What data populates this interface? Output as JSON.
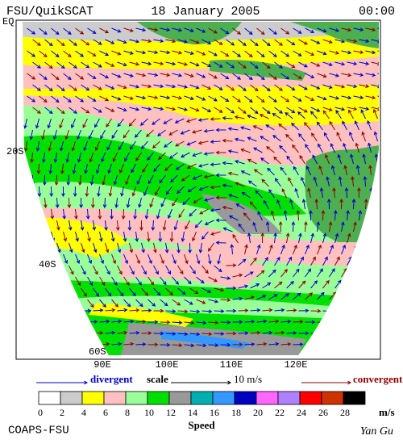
{
  "header": {
    "left": "FSU/QuikSCAT",
    "center": "18 January 2005",
    "right": "00:00"
  },
  "map": {
    "lat_labels": [
      "EQ",
      "20S",
      "40S",
      "60S"
    ],
    "lon_labels": [
      "90E",
      "100E",
      "110E",
      "120E"
    ]
  },
  "legend": {
    "divergent": "divergent",
    "scale": "scale",
    "scale_value": "10 m/s",
    "convergent": "convergent",
    "divergent_color": "#0000c8",
    "convergent_color": "#8b0000"
  },
  "colorbar": {
    "ticks": [
      0,
      2,
      4,
      6,
      8,
      10,
      12,
      14,
      16,
      18,
      20,
      22,
      24,
      26,
      28
    ],
    "colors": [
      "#ffffff",
      "#cccccc",
      "#ffff00",
      "#ffc0c0",
      "#99ff99",
      "#00e000",
      "#999999",
      "#00b0b0",
      "#3399ff",
      "#0000c0",
      "#ff66ff",
      "#b080ff",
      "#ff0000",
      "#cc3300",
      "#000000"
    ],
    "unit": "m/s",
    "label": "Speed"
  },
  "footer": {
    "left": "COAPS-FSU",
    "right": "Yan Gu"
  }
}
